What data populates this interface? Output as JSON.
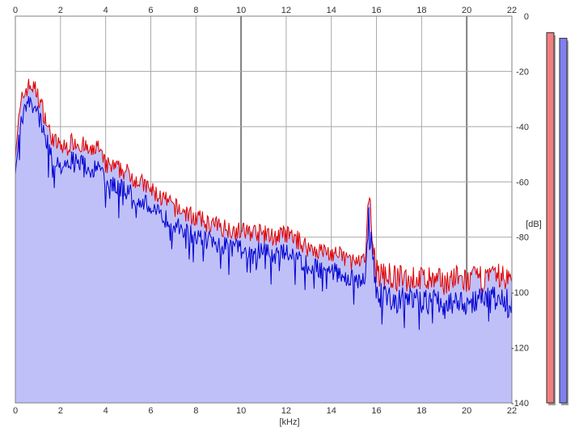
{
  "chart_data": {
    "type": "line",
    "xlabel": "[kHz]",
    "ylabel": "[dB]",
    "xlim": [
      0,
      22
    ],
    "ylim": [
      -140,
      0
    ],
    "x_ticks": [
      0,
      2,
      4,
      6,
      8,
      10,
      12,
      14,
      16,
      18,
      20,
      22
    ],
    "y_ticks": [
      0,
      -20,
      -40,
      -60,
      -80,
      -100,
      -120,
      -140
    ],
    "grid": true,
    "colors": {
      "red": "#e00000",
      "blue": "#0000d0",
      "fill": "#c0c0f8",
      "meter_red": "#f08080",
      "meter_blue": "#8080f0"
    },
    "envelope": {
      "x": [
        0,
        0.15,
        0.3,
        0.5,
        0.7,
        0.9,
        1.1,
        1.3,
        1.5,
        1.8,
        2.2,
        2.6,
        3.0,
        3.4,
        3.6,
        3.8,
        4.0,
        4.4,
        4.8,
        5.2,
        5.5,
        6.0,
        6.5,
        7.0,
        7.5,
        8.0,
        8.5,
        9.0,
        9.5,
        10.0,
        10.5,
        11.0,
        11.5,
        12.0,
        12.5,
        13.0,
        13.5,
        14.0,
        14.5,
        15.0,
        15.3,
        15.5,
        15.6,
        15.65,
        15.75,
        15.85,
        16.0,
        16.5,
        17.0,
        17.5,
        18.0,
        18.5,
        19.0,
        19.5,
        20.0,
        20.5,
        21.0,
        21.5,
        22.0
      ],
      "db": [
        -50,
        -40,
        -32,
        -28,
        -27,
        -29,
        -33,
        -38,
        -44,
        -48,
        -50,
        -47,
        -49,
        -52,
        -48,
        -53,
        -56,
        -57,
        -58,
        -60,
        -62,
        -65,
        -68,
        -71,
        -73,
        -75,
        -77,
        -78,
        -79,
        -80,
        -80,
        -81,
        -82,
        -81,
        -83,
        -86,
        -87,
        -88,
        -89,
        -91,
        -92,
        -90,
        -78,
        -67,
        -72,
        -84,
        -95,
        -96,
        -97,
        -97,
        -97,
        -98,
        -98,
        -97,
        -98,
        -97,
        -97,
        -96,
        -98
      ]
    },
    "series": [
      {
        "color": "red",
        "values": "envelope + 0..6 dB jitter"
      },
      {
        "color": "blue",
        "values": "envelope - 0..10 dB jitter"
      }
    ],
    "level_meters": [
      {
        "channel": "red",
        "db": -6
      },
      {
        "channel": "blue",
        "db": -8
      }
    ]
  }
}
